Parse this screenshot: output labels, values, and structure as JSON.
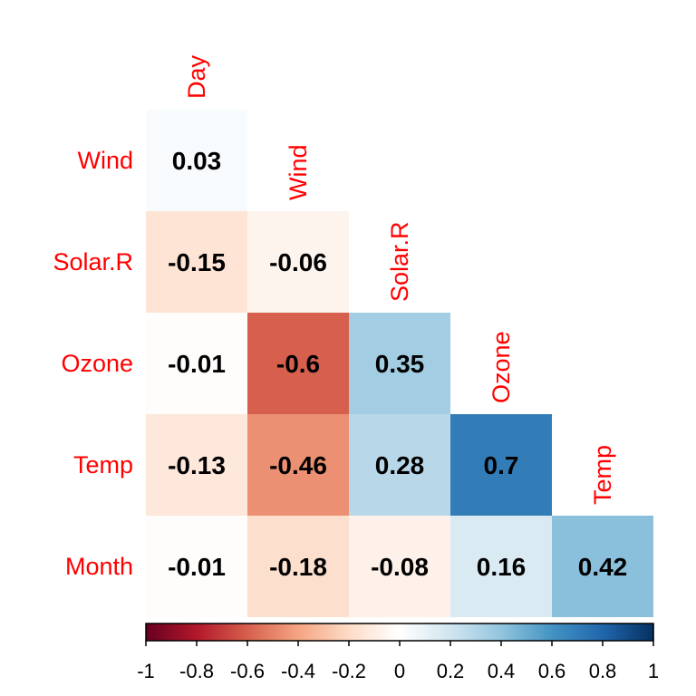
{
  "chart_data": {
    "type": "heatmap",
    "title": "",
    "variables": [
      "Day",
      "Wind",
      "Solar.R",
      "Ozone",
      "Temp",
      "Month"
    ],
    "row_labels": [
      "Wind",
      "Solar.R",
      "Ozone",
      "Temp",
      "Month"
    ],
    "col_labels": [
      "Day",
      "Wind",
      "Solar.R",
      "Ozone",
      "Temp"
    ],
    "values": [
      [
        0.03
      ],
      [
        -0.15,
        -0.06
      ],
      [
        -0.01,
        -0.6,
        0.35
      ],
      [
        -0.13,
        -0.46,
        0.28,
        0.7
      ],
      [
        -0.01,
        -0.18,
        -0.08,
        0.16,
        0.42
      ]
    ],
    "value_labels": [
      [
        "0.03"
      ],
      [
        "-0.15",
        "-0.06"
      ],
      [
        "-0.01",
        "-0.6",
        "0.35"
      ],
      [
        "-0.13",
        "-0.46",
        "0.28",
        "0.7"
      ],
      [
        "-0.01",
        "-0.18",
        "-0.08",
        "0.16",
        "0.42"
      ]
    ],
    "colorbar": {
      "range": [
        -1,
        1
      ],
      "ticks": [
        "-1",
        "-0.8",
        "-0.6",
        "-0.4",
        "-0.2",
        "0",
        "0.2",
        "0.4",
        "0.6",
        "0.8",
        "1"
      ],
      "palette": [
        "#67001F",
        "#B2182B",
        "#D6604D",
        "#F4A582",
        "#FDDBC7",
        "#FFFFFF",
        "#D1E5F0",
        "#92C5DE",
        "#4393C3",
        "#2166AC",
        "#053061"
      ]
    },
    "label_color": "#FF0000"
  }
}
